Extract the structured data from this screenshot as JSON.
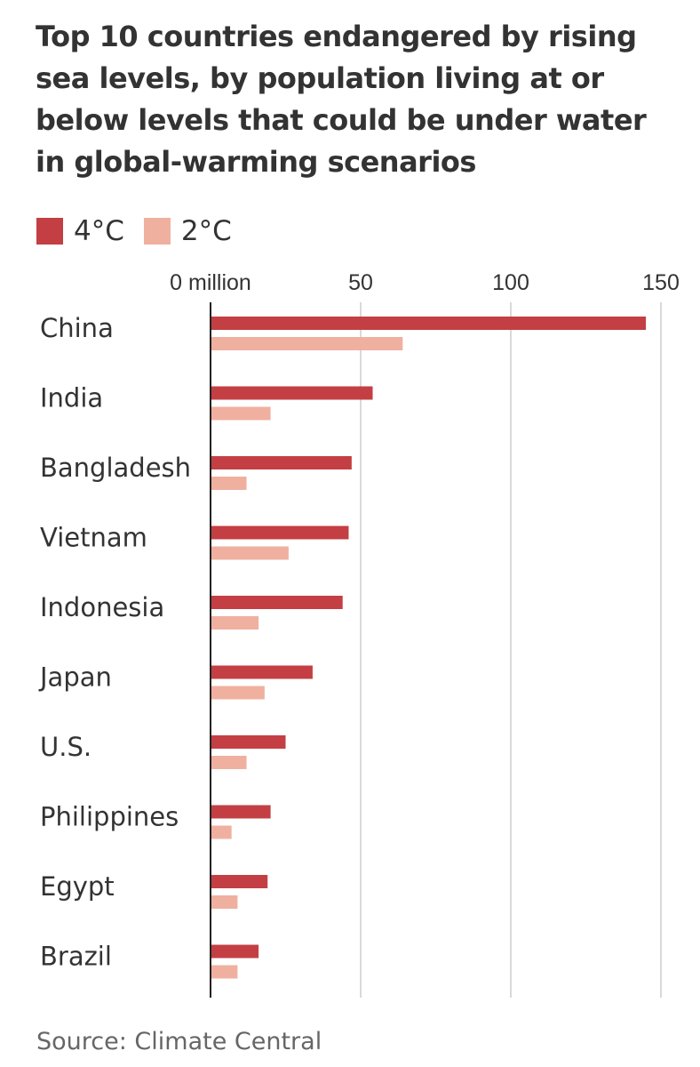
{
  "title": "Top 10 countries endangered by rising sea levels, by population living at or below levels that could be under water in global-warming scenarios",
  "source": "Source: Climate Central",
  "colors": {
    "series_4c": "#c33f43",
    "series_2c": "#f0b0a0",
    "gridline": "#d9d9d9",
    "axis": "#222222",
    "text": "#333333"
  },
  "chart_data": {
    "type": "bar",
    "orientation": "horizontal",
    "categories": [
      "China",
      "India",
      "Bangladesh",
      "Vietnam",
      "Indonesia",
      "Japan",
      "U.S.",
      "Philippines",
      "Egypt",
      "Brazil"
    ],
    "series": [
      {
        "name": "4°C",
        "values": [
          145,
          54,
          47,
          46,
          44,
          34,
          25,
          20,
          19,
          16
        ]
      },
      {
        "name": "2°C",
        "values": [
          64,
          20,
          12,
          26,
          16,
          18,
          12,
          7,
          9,
          9
        ]
      }
    ],
    "xlim": [
      0,
      150
    ],
    "ticks": [
      {
        "value": 0,
        "label": "0 million"
      },
      {
        "value": 50,
        "label": "50"
      },
      {
        "value": 100,
        "label": "100"
      },
      {
        "value": 150,
        "label": "150"
      }
    ],
    "grid": true,
    "legend_position": "top-left"
  }
}
